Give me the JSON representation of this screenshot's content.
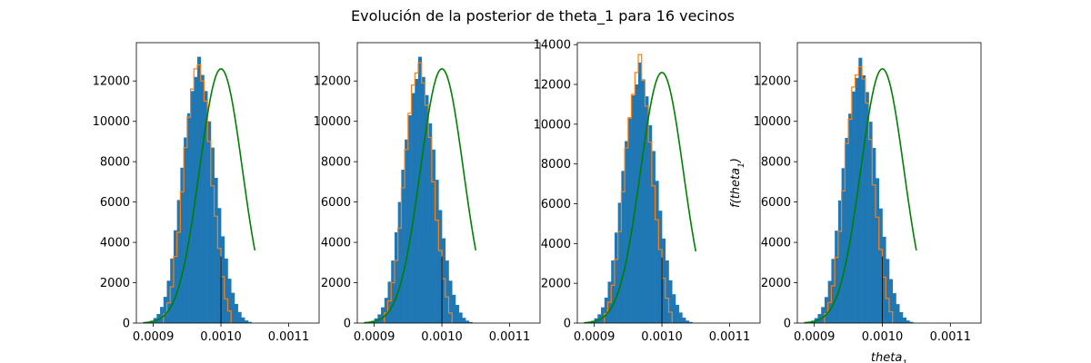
{
  "title": "Evolución de la posterior de theta_1 para 16 vecinos",
  "colors": {
    "hist_fill": "#1f77b4",
    "step_line": "#ff7f0e",
    "density_line": "#008000",
    "true_value_line": "#000000"
  },
  "chart_data": [
    {
      "type": "bar",
      "xlim": [
        0.000875,
        0.001145
      ],
      "ylim": [
        0,
        13900
      ],
      "x_ticks": [
        "0.0009",
        "0.0010",
        "0.0011"
      ],
      "y_ticks": [
        "0",
        "2000",
        "4000",
        "6000",
        "8000",
        "10000",
        "12000"
      ],
      "xlabel": "",
      "ylabel": "",
      "true_value": {
        "x": 0.001,
        "height": 3300
      },
      "density": {
        "mu": 0.001,
        "sigma": 3.16e-05,
        "peak": 12600
      },
      "hist_bins": {
        "start": 0.00089,
        "width": 5e-06
      },
      "hist_values": [
        60,
        120,
        250,
        450,
        800,
        1300,
        2100,
        3200,
        4600,
        6100,
        7700,
        9200,
        10400,
        11500,
        12200,
        13200,
        12300,
        11500,
        10000,
        8700,
        7200,
        5700,
        4300,
        3200,
        2200,
        1500,
        950,
        550,
        280,
        130,
        60
      ],
      "step_bins": {
        "start": 0.000915,
        "width": 5e-06
      },
      "step_values": [
        450,
        1000,
        1800,
        3300,
        4500,
        6500,
        8700,
        10200,
        11600,
        12600,
        12800,
        12000,
        11000,
        9000,
        6800,
        5300,
        3700,
        2300,
        1200,
        600
      ]
    },
    {
      "type": "bar",
      "xlim": [
        0.000875,
        0.001145
      ],
      "ylim": [
        0,
        13900
      ],
      "x_ticks": [
        "0.0009",
        "0.0010",
        "0.0011"
      ],
      "y_ticks": [
        "0",
        "2000",
        "4000",
        "6000",
        "8000",
        "10000",
        "12000"
      ],
      "xlabel": "",
      "ylabel": "",
      "true_value": {
        "x": 0.001,
        "height": 3300
      },
      "density": {
        "mu": 0.001,
        "sigma": 3.16e-05,
        "peak": 12600
      },
      "hist_bins": {
        "start": 0.00089,
        "width": 5e-06
      },
      "hist_values": [
        50,
        110,
        230,
        430,
        780,
        1250,
        2050,
        3100,
        4500,
        6000,
        7600,
        9100,
        10300,
        11400,
        12100,
        13200,
        12200,
        11300,
        9900,
        8600,
        7100,
        5600,
        4200,
        3100,
        2100,
        1400,
        900,
        520,
        260,
        120,
        50
      ],
      "step_bins": {
        "start": 0.000915,
        "width": 5e-06
      },
      "step_values": [
        500,
        1100,
        2000,
        3100,
        4700,
        6700,
        8600,
        10400,
        11800,
        12400,
        12900,
        11900,
        10800,
        9200,
        7000,
        5100,
        3600,
        2200,
        1300,
        500
      ]
    },
    {
      "type": "bar",
      "xlim": [
        0.000875,
        0.001145
      ],
      "ylim": [
        0,
        14100
      ],
      "x_ticks": [
        "0.0009",
        "0.0010",
        "0.0011"
      ],
      "y_ticks": [
        "0",
        "2000",
        "4000",
        "6000",
        "8000",
        "10000",
        "12000",
        "14000"
      ],
      "xlabel": "",
      "ylabel": "",
      "true_value": {
        "x": 0.001,
        "height": 3300
      },
      "density": {
        "mu": 0.001,
        "sigma": 3.16e-05,
        "peak": 12600
      },
      "hist_bins": {
        "start": 0.00089,
        "width": 5e-06
      },
      "hist_values": [
        55,
        115,
        240,
        440,
        790,
        1280,
        2080,
        3150,
        4550,
        6050,
        7650,
        9150,
        10350,
        11450,
        12000,
        13100,
        12250,
        11400,
        9950,
        8650,
        7150,
        5650,
        4250,
        3150,
        2150,
        1450,
        920,
        530,
        270,
        125,
        55
      ],
      "step_bins": {
        "start": 0.000915,
        "width": 5e-06
      },
      "step_values": [
        480,
        1050,
        1900,
        3200,
        4600,
        6600,
        8800,
        10300,
        11500,
        12600,
        13500,
        12200,
        10900,
        9100,
        6900,
        5200,
        3700,
        2250,
        1250,
        550
      ]
    },
    {
      "type": "bar",
      "xlim": [
        0.000875,
        0.001145
      ],
      "ylim": [
        0,
        13900
      ],
      "x_ticks": [
        "0.0009",
        "0.0010",
        "0.0011"
      ],
      "y_ticks": [
        "0",
        "2000",
        "4000",
        "6000",
        "8000",
        "10000",
        "12000"
      ],
      "xlabel": "theta_1",
      "ylabel": "f(theta_1)",
      "true_value": {
        "x": 0.001,
        "height": 3300
      },
      "density": {
        "mu": 0.001,
        "sigma": 3.16e-05,
        "peak": 12600
      },
      "hist_bins": {
        "start": 0.00089,
        "width": 5e-06
      },
      "hist_values": [
        58,
        118,
        245,
        448,
        795,
        1290,
        2090,
        3180,
        4580,
        6080,
        7680,
        9180,
        10380,
        11480,
        12150,
        13150,
        12280,
        11450,
        9980,
        8680,
        7180,
        5680,
        4280,
        3180,
        2180,
        1480,
        940,
        540,
        275,
        128,
        58
      ],
      "step_bins": {
        "start": 0.000915,
        "width": 5e-06
      },
      "step_values": [
        470,
        1020,
        1850,
        3250,
        4550,
        6550,
        8900,
        10100,
        11700,
        12300,
        12700,
        12100,
        10900,
        9100,
        6850,
        5250,
        3650,
        2280,
        1220,
        560
      ]
    }
  ]
}
